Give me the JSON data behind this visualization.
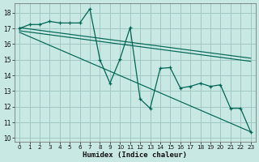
{
  "xlabel": "Humidex (Indice chaleur)",
  "bg_color": "#c8e8e4",
  "grid_color": "#a0c8c4",
  "line_color": "#006655",
  "xlim": [
    -0.5,
    23.5
  ],
  "ylim": [
    9.75,
    18.6
  ],
  "yticks": [
    10,
    11,
    12,
    13,
    14,
    15,
    16,
    17,
    18
  ],
  "xticks": [
    0,
    1,
    2,
    3,
    4,
    5,
    6,
    7,
    8,
    9,
    10,
    11,
    12,
    13,
    14,
    15,
    16,
    17,
    18,
    19,
    20,
    21,
    22,
    23
  ],
  "main_x": [
    0,
    1,
    2,
    3,
    4,
    5,
    6,
    7,
    8,
    9,
    10,
    11,
    12,
    13,
    14,
    15,
    16,
    17,
    18,
    19,
    20,
    21,
    22,
    23
  ],
  "main_y": [
    17.0,
    17.25,
    17.25,
    17.45,
    17.35,
    17.35,
    17.35,
    18.25,
    15.0,
    13.5,
    15.05,
    17.05,
    12.5,
    11.9,
    14.45,
    14.5,
    13.2,
    13.3,
    13.5,
    13.3,
    13.4,
    11.9,
    11.9,
    10.4
  ],
  "reg_lines": [
    {
      "x": [
        0,
        23
      ],
      "y": [
        17.05,
        15.1
      ]
    },
    {
      "x": [
        0,
        23
      ],
      "y": [
        16.85,
        14.9
      ]
    },
    {
      "x": [
        0,
        23
      ],
      "y": [
        16.75,
        10.4
      ]
    }
  ]
}
